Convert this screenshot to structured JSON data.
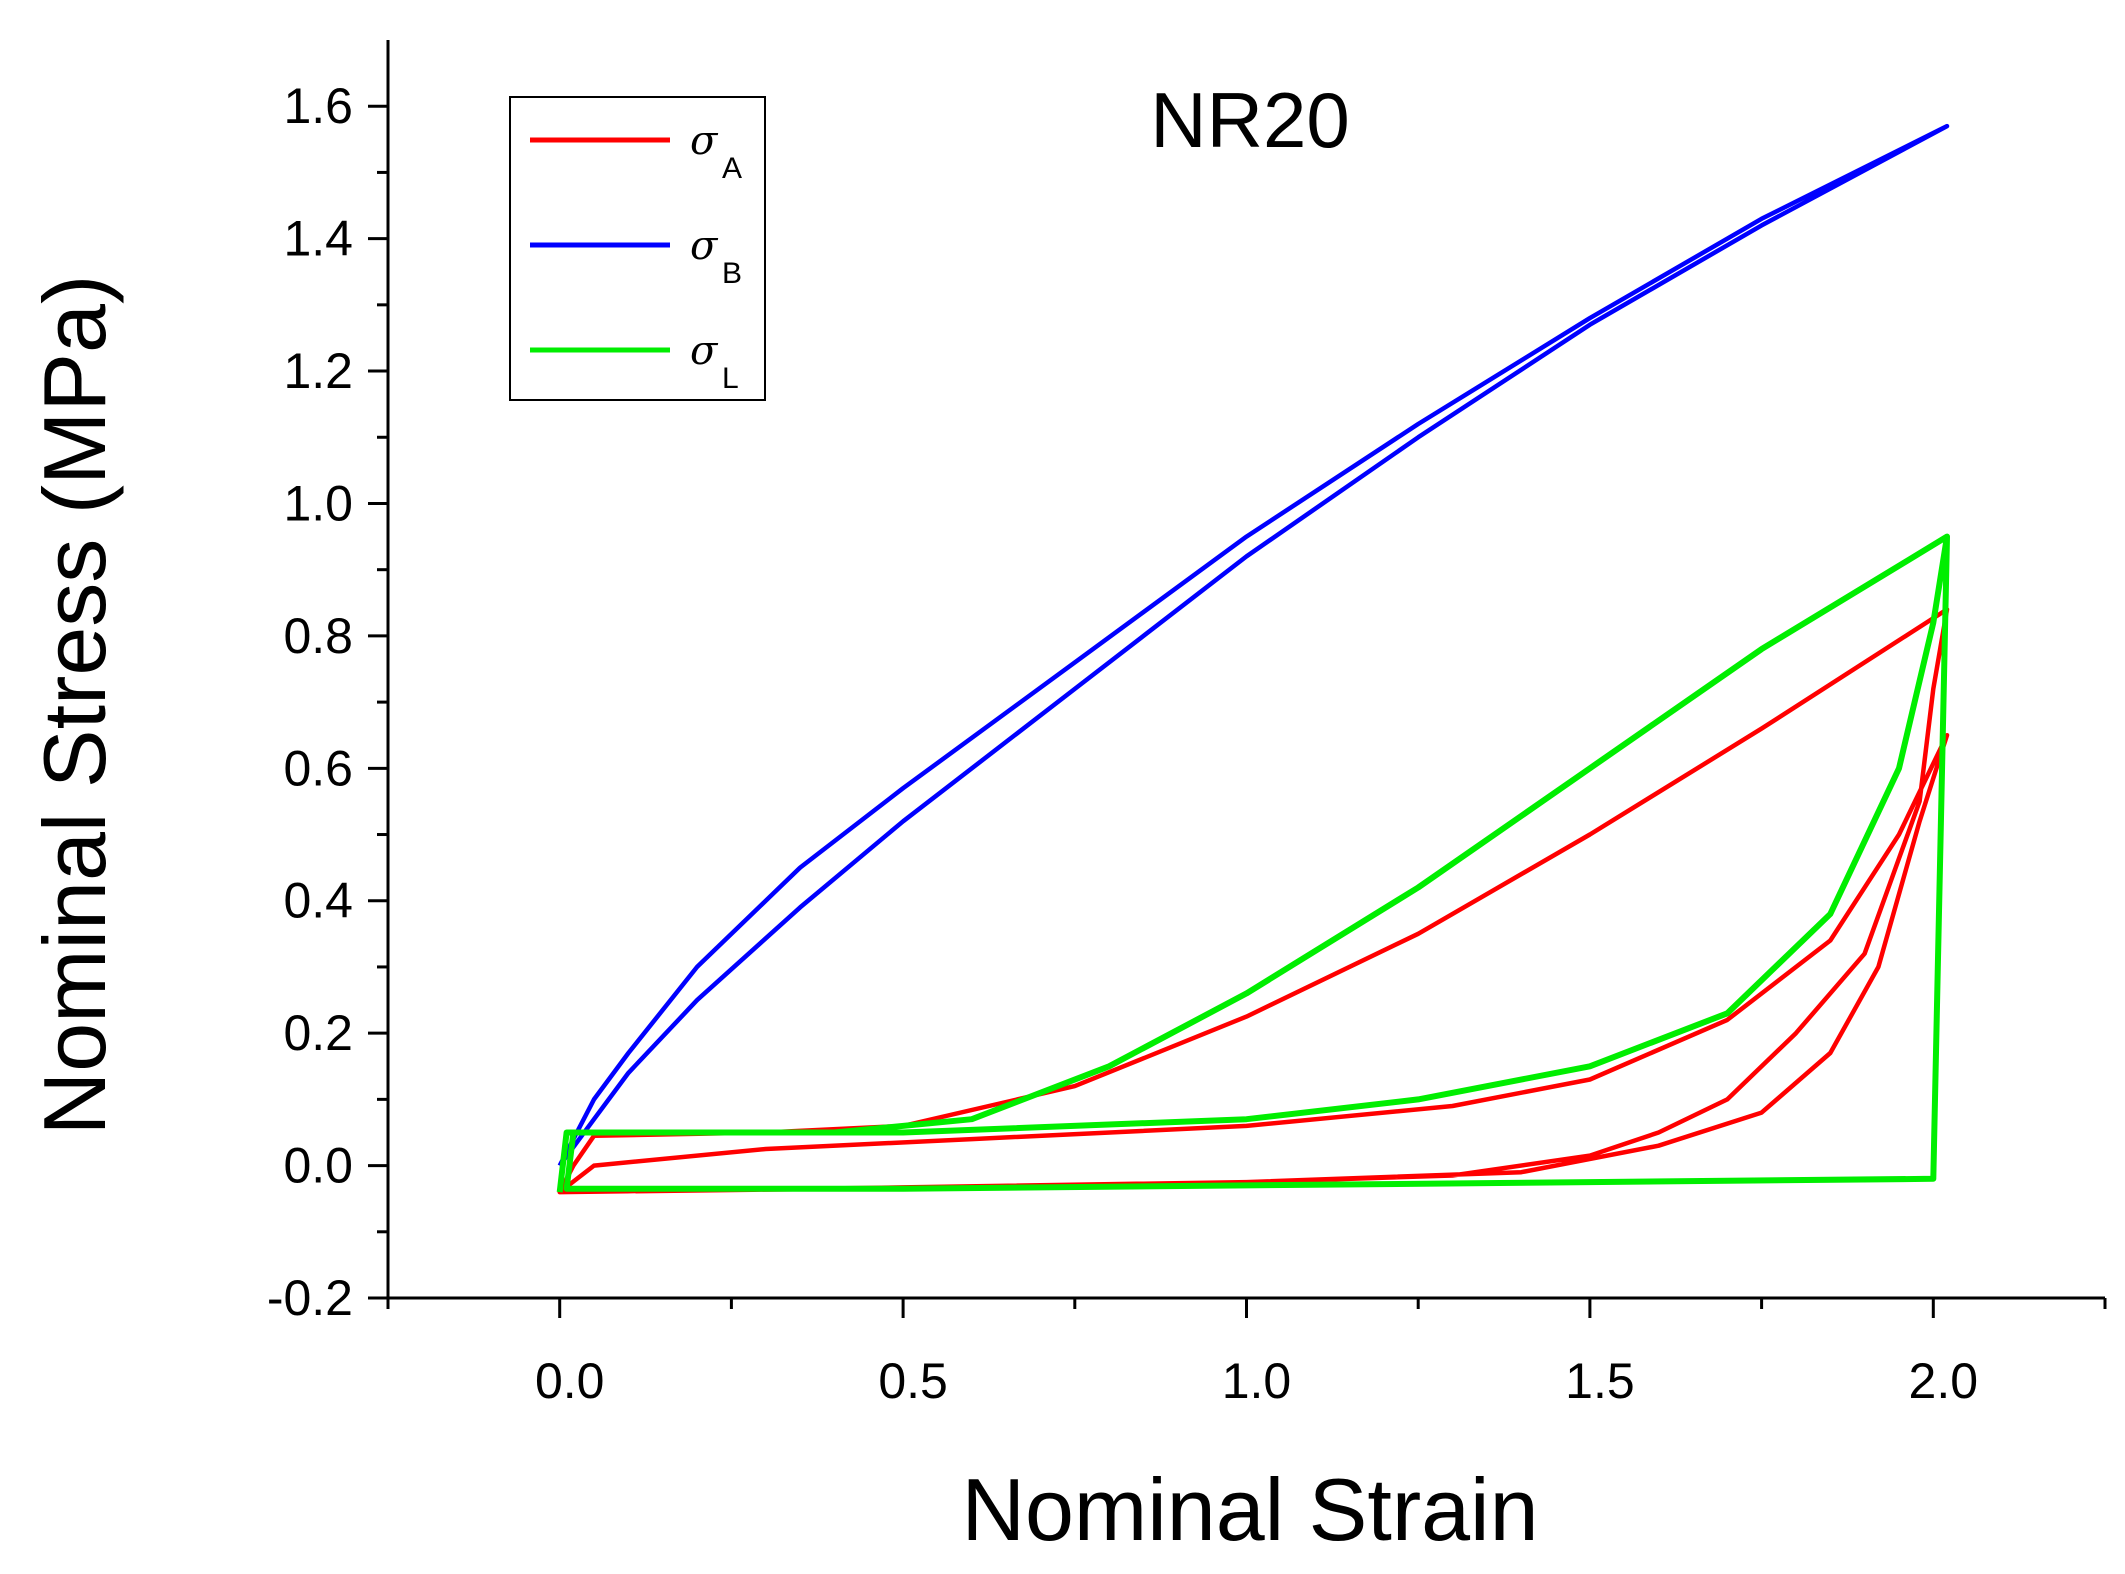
{
  "chart_data": {
    "type": "line",
    "title": "NR20",
    "xlabel": "Nominal Strain",
    "ylabel": "Nominal Stress (MPa)",
    "xlim": [
      -0.25,
      2.25
    ],
    "ylim": [
      -0.2,
      1.7
    ],
    "x_ticks": [
      "0.0",
      "0.5",
      "1.0",
      "1.5",
      "2.0"
    ],
    "x_tick_values": [
      0,
      0.5,
      1.0,
      1.5,
      2.0
    ],
    "y_ticks": [
      "-0.2",
      "0.0",
      "0.2",
      "0.4",
      "0.6",
      "0.8",
      "1.0",
      "1.2",
      "1.4",
      "1.6"
    ],
    "y_tick_values": [
      -0.2,
      0,
      0.2,
      0.4,
      0.6,
      0.8,
      1.0,
      1.2,
      1.4,
      1.6
    ],
    "legend_position": "top-left",
    "series": [
      {
        "name": "σA",
        "symbol": "σ",
        "subscript": "A",
        "color": "#ff0000",
        "points": [
          [
            0.0,
            -0.04
          ],
          [
            0.02,
            0.0
          ],
          [
            0.05,
            0.045
          ],
          [
            0.3,
            0.05
          ],
          [
            0.5,
            0.06
          ],
          [
            0.75,
            0.12
          ],
          [
            1.0,
            0.225
          ],
          [
            1.25,
            0.35
          ],
          [
            1.5,
            0.5
          ],
          [
            1.75,
            0.66
          ],
          [
            2.02,
            0.84
          ],
          [
            2.0,
            0.72
          ],
          [
            1.98,
            0.55
          ],
          [
            1.9,
            0.32
          ],
          [
            1.8,
            0.2
          ],
          [
            1.7,
            0.1
          ],
          [
            1.6,
            0.05
          ],
          [
            1.5,
            0.015
          ],
          [
            1.3,
            -0.015
          ],
          [
            1.0,
            -0.025
          ],
          [
            0.5,
            -0.033
          ],
          [
            0.0,
            -0.04
          ],
          [
            0.05,
            0.0
          ],
          [
            0.3,
            0.025
          ],
          [
            0.6,
            0.04
          ],
          [
            1.0,
            0.06
          ],
          [
            1.3,
            0.09
          ],
          [
            1.5,
            0.13
          ],
          [
            1.7,
            0.22
          ],
          [
            1.85,
            0.34
          ],
          [
            1.95,
            0.5
          ],
          [
            2.02,
            0.65
          ],
          [
            1.98,
            0.52
          ],
          [
            1.92,
            0.3
          ],
          [
            1.85,
            0.17
          ],
          [
            1.75,
            0.08
          ],
          [
            1.6,
            0.03
          ],
          [
            1.4,
            -0.01
          ],
          [
            1.0,
            -0.025
          ],
          [
            0.4,
            -0.035
          ],
          [
            0.0,
            -0.04
          ]
        ]
      },
      {
        "name": "σB",
        "symbol": "σ",
        "subscript": "B",
        "color": "#0000ff",
        "points": [
          [
            0.0,
            0.0
          ],
          [
            0.05,
            0.1
          ],
          [
            0.1,
            0.17
          ],
          [
            0.2,
            0.3
          ],
          [
            0.35,
            0.45
          ],
          [
            0.5,
            0.57
          ],
          [
            0.75,
            0.76
          ],
          [
            1.0,
            0.95
          ],
          [
            1.25,
            1.12
          ],
          [
            1.5,
            1.28
          ],
          [
            1.75,
            1.43
          ],
          [
            2.02,
            1.57
          ],
          [
            1.75,
            1.42
          ],
          [
            1.5,
            1.27
          ],
          [
            1.25,
            1.1
          ],
          [
            1.0,
            0.92
          ],
          [
            0.75,
            0.72
          ],
          [
            0.5,
            0.52
          ],
          [
            0.35,
            0.39
          ],
          [
            0.2,
            0.25
          ],
          [
            0.1,
            0.14
          ],
          [
            0.05,
            0.07
          ],
          [
            0.0,
            0.0
          ]
        ]
      },
      {
        "name": "σL",
        "symbol": "σ",
        "subscript": "L",
        "color": "#00ee00",
        "points": [
          [
            0.0,
            -0.04
          ],
          [
            0.01,
            0.05
          ],
          [
            0.4,
            0.05
          ],
          [
            0.6,
            0.07
          ],
          [
            0.8,
            0.15
          ],
          [
            1.0,
            0.26
          ],
          [
            1.25,
            0.42
          ],
          [
            1.5,
            0.6
          ],
          [
            1.75,
            0.78
          ],
          [
            2.02,
            0.95
          ],
          [
            2.0,
            0.82
          ],
          [
            1.95,
            0.6
          ],
          [
            1.85,
            0.38
          ],
          [
            1.7,
            0.23
          ],
          [
            1.5,
            0.15
          ],
          [
            1.25,
            0.1
          ],
          [
            1.0,
            0.07
          ],
          [
            0.5,
            0.05
          ],
          [
            0.02,
            0.05
          ],
          [
            0.01,
            -0.035
          ],
          [
            0.5,
            -0.035
          ],
          [
            1.0,
            -0.03
          ],
          [
            1.5,
            -0.025
          ],
          [
            2.0,
            -0.02
          ],
          [
            2.02,
            0.95
          ]
        ]
      }
    ]
  }
}
